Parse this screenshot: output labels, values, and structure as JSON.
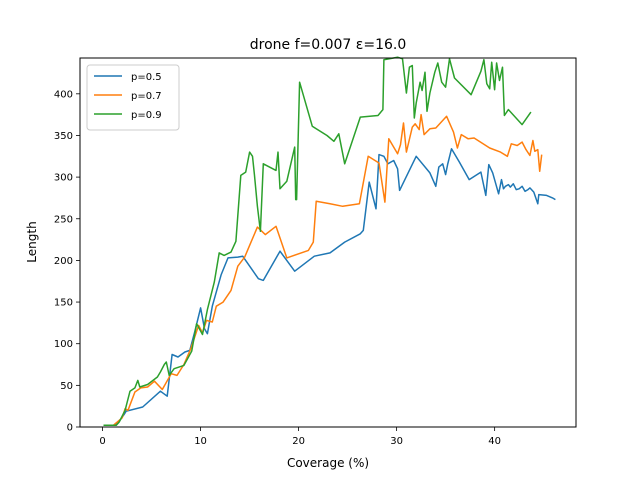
{
  "chart_data": {
    "type": "line",
    "title": "drone f=0.007 ε=16.0",
    "xlabel": "Coverage (%)",
    "ylabel": "Length",
    "xlim": [
      -2.3,
      48.3
    ],
    "ylim": [
      0,
      443
    ],
    "xticks": [
      0,
      10,
      20,
      30,
      40
    ],
    "yticks": [
      0,
      50,
      100,
      150,
      200,
      250,
      300,
      350,
      400
    ],
    "grid": false,
    "legend_position": "top-left",
    "series": [
      {
        "name": "p=0.5",
        "color": "#1f77b4",
        "points": [
          [
            0.1,
            2
          ],
          [
            1.2,
            2
          ],
          [
            1.6,
            5
          ],
          [
            2.2,
            15
          ],
          [
            2.4,
            19
          ],
          [
            4.1,
            24
          ],
          [
            5.9,
            43
          ],
          [
            6.6,
            37
          ],
          [
            7.1,
            87
          ],
          [
            7.7,
            84
          ],
          [
            8.4,
            90
          ],
          [
            8.9,
            92
          ],
          [
            9.4,
            114
          ],
          [
            10.0,
            143
          ],
          [
            10.4,
            118
          ],
          [
            10.7,
            112
          ],
          [
            11.2,
            145
          ],
          [
            12.1,
            183
          ],
          [
            12.8,
            203
          ],
          [
            13.8,
            204
          ],
          [
            14.3,
            205
          ],
          [
            15.9,
            178
          ],
          [
            16.4,
            176
          ],
          [
            18.1,
            211
          ],
          [
            19.6,
            187
          ],
          [
            21.6,
            205
          ],
          [
            23.2,
            209
          ],
          [
            24.7,
            222
          ],
          [
            26.3,
            232
          ],
          [
            26.6,
            236
          ],
          [
            27.2,
            294
          ],
          [
            27.9,
            262
          ],
          [
            28.2,
            327
          ],
          [
            28.7,
            325
          ],
          [
            29.1,
            316
          ],
          [
            29.7,
            320
          ],
          [
            30.1,
            310
          ],
          [
            30.3,
            284
          ],
          [
            32.0,
            325
          ],
          [
            33.4,
            305
          ],
          [
            34.0,
            289
          ],
          [
            34.3,
            312
          ],
          [
            34.7,
            316
          ],
          [
            35.0,
            303
          ],
          [
            35.2,
            315
          ],
          [
            35.6,
            334
          ],
          [
            36.4,
            318
          ],
          [
            37.4,
            297
          ],
          [
            38.6,
            306
          ],
          [
            39.1,
            278
          ],
          [
            39.4,
            315
          ],
          [
            39.8,
            305
          ],
          [
            40.4,
            280
          ],
          [
            40.7,
            297
          ],
          [
            40.9,
            286
          ],
          [
            41.1,
            289
          ],
          [
            41.4,
            291
          ],
          [
            41.6,
            288
          ],
          [
            41.9,
            292
          ],
          [
            42.2,
            285
          ],
          [
            42.5,
            286
          ],
          [
            42.8,
            289
          ],
          [
            43.1,
            283
          ],
          [
            43.4,
            285
          ],
          [
            43.6,
            287
          ],
          [
            44.0,
            282
          ],
          [
            44.4,
            268
          ],
          [
            44.5,
            279
          ],
          [
            45.3,
            278
          ],
          [
            45.9,
            275
          ],
          [
            46.2,
            273
          ]
        ]
      },
      {
        "name": "p=0.7",
        "color": "#ff7f0e",
        "points": [
          [
            0.1,
            2
          ],
          [
            1.1,
            2
          ],
          [
            2.0,
            11
          ],
          [
            2.3,
            22
          ],
          [
            2.6,
            20
          ],
          [
            3.3,
            42
          ],
          [
            3.9,
            47
          ],
          [
            4.6,
            48
          ],
          [
            5.3,
            55
          ],
          [
            6.1,
            45
          ],
          [
            7.0,
            64
          ],
          [
            7.6,
            62
          ],
          [
            8.3,
            75
          ],
          [
            9.0,
            94
          ],
          [
            9.8,
            122
          ],
          [
            10.2,
            113
          ],
          [
            10.6,
            128
          ],
          [
            11.2,
            126
          ],
          [
            11.6,
            145
          ],
          [
            12.3,
            150
          ],
          [
            13.1,
            164
          ],
          [
            13.8,
            193
          ],
          [
            14.5,
            204
          ],
          [
            15.0,
            218
          ],
          [
            15.8,
            240
          ],
          [
            16.6,
            231
          ],
          [
            17.7,
            241
          ],
          [
            18.8,
            203
          ],
          [
            21.0,
            212
          ],
          [
            21.5,
            222
          ],
          [
            21.8,
            271
          ],
          [
            23.2,
            268
          ],
          [
            24.5,
            265
          ],
          [
            26.2,
            268
          ],
          [
            27.1,
            325
          ],
          [
            28.2,
            317
          ],
          [
            28.8,
            270
          ],
          [
            29.2,
            346
          ],
          [
            29.5,
            340
          ],
          [
            30.1,
            328
          ],
          [
            30.4,
            339
          ],
          [
            30.7,
            365
          ],
          [
            31.0,
            330
          ],
          [
            31.6,
            360
          ],
          [
            31.9,
            364
          ],
          [
            32.3,
            357
          ],
          [
            32.5,
            375
          ],
          [
            32.8,
            351
          ],
          [
            33.4,
            358
          ],
          [
            34.0,
            359
          ],
          [
            35.1,
            373
          ],
          [
            35.8,
            354
          ],
          [
            36.2,
            335
          ],
          [
            36.6,
            351
          ],
          [
            37.3,
            346
          ],
          [
            37.9,
            347
          ],
          [
            38.7,
            341
          ],
          [
            39.5,
            335
          ],
          [
            40.6,
            330
          ],
          [
            41.3,
            325
          ],
          [
            41.7,
            340
          ],
          [
            42.3,
            338
          ],
          [
            42.8,
            342
          ],
          [
            43.2,
            333
          ],
          [
            43.6,
            326
          ],
          [
            43.9,
            344
          ],
          [
            44.1,
            331
          ],
          [
            44.4,
            333
          ],
          [
            44.6,
            307
          ],
          [
            44.8,
            327
          ]
        ]
      },
      {
        "name": "p=0.9",
        "color": "#2ca02c",
        "points": [
          [
            0.1,
            2
          ],
          [
            1.4,
            2
          ],
          [
            1.7,
            6
          ],
          [
            2.3,
            20
          ],
          [
            2.8,
            43
          ],
          [
            3.3,
            47
          ],
          [
            3.6,
            56
          ],
          [
            3.8,
            48
          ],
          [
            4.6,
            51
          ],
          [
            5.6,
            60
          ],
          [
            5.9,
            66
          ],
          [
            6.3,
            75
          ],
          [
            6.5,
            78
          ],
          [
            6.8,
            62
          ],
          [
            7.3,
            70
          ],
          [
            8.3,
            74
          ],
          [
            9.1,
            91
          ],
          [
            9.6,
            124
          ],
          [
            10.2,
            111
          ],
          [
            10.7,
            141
          ],
          [
            11.4,
            174
          ],
          [
            11.9,
            209
          ],
          [
            12.4,
            206
          ],
          [
            13.1,
            210
          ],
          [
            13.6,
            223
          ],
          [
            14.1,
            302
          ],
          [
            14.6,
            306
          ],
          [
            15.0,
            330
          ],
          [
            15.3,
            325
          ],
          [
            15.5,
            302
          ],
          [
            15.8,
            265
          ],
          [
            16.1,
            235
          ],
          [
            16.4,
            316
          ],
          [
            17.7,
            308
          ],
          [
            17.9,
            330
          ],
          [
            18.1,
            286
          ],
          [
            18.8,
            295
          ],
          [
            19.6,
            336
          ],
          [
            19.7,
            273
          ],
          [
            19.8,
            273
          ],
          [
            20.1,
            414
          ],
          [
            21.4,
            361
          ],
          [
            22.9,
            350
          ],
          [
            23.6,
            343
          ],
          [
            24.1,
            352
          ],
          [
            24.7,
            316
          ],
          [
            26.3,
            372
          ],
          [
            28.1,
            374
          ],
          [
            28.6,
            381
          ],
          [
            28.7,
            441
          ],
          [
            30.1,
            444
          ],
          [
            30.6,
            442
          ],
          [
            31.0,
            401
          ],
          [
            31.3,
            432
          ],
          [
            31.6,
            434
          ],
          [
            31.8,
            371
          ],
          [
            32.0,
            389
          ],
          [
            32.4,
            414
          ],
          [
            32.6,
            404
          ],
          [
            32.9,
            426
          ],
          [
            33.1,
            379
          ],
          [
            33.4,
            401
          ],
          [
            33.9,
            426
          ],
          [
            34.2,
            437
          ],
          [
            34.6,
            414
          ],
          [
            35.0,
            408
          ],
          [
            35.4,
            442
          ],
          [
            35.9,
            419
          ],
          [
            37.6,
            399
          ],
          [
            38.6,
            427
          ],
          [
            38.9,
            441
          ],
          [
            39.2,
            412
          ],
          [
            39.5,
            406
          ],
          [
            39.7,
            438
          ],
          [
            40.0,
            405
          ],
          [
            40.2,
            437
          ],
          [
            40.5,
            416
          ],
          [
            40.8,
            432
          ],
          [
            41.0,
            374
          ],
          [
            41.4,
            381
          ],
          [
            42.8,
            363
          ],
          [
            43.7,
            378
          ]
        ]
      }
    ]
  }
}
